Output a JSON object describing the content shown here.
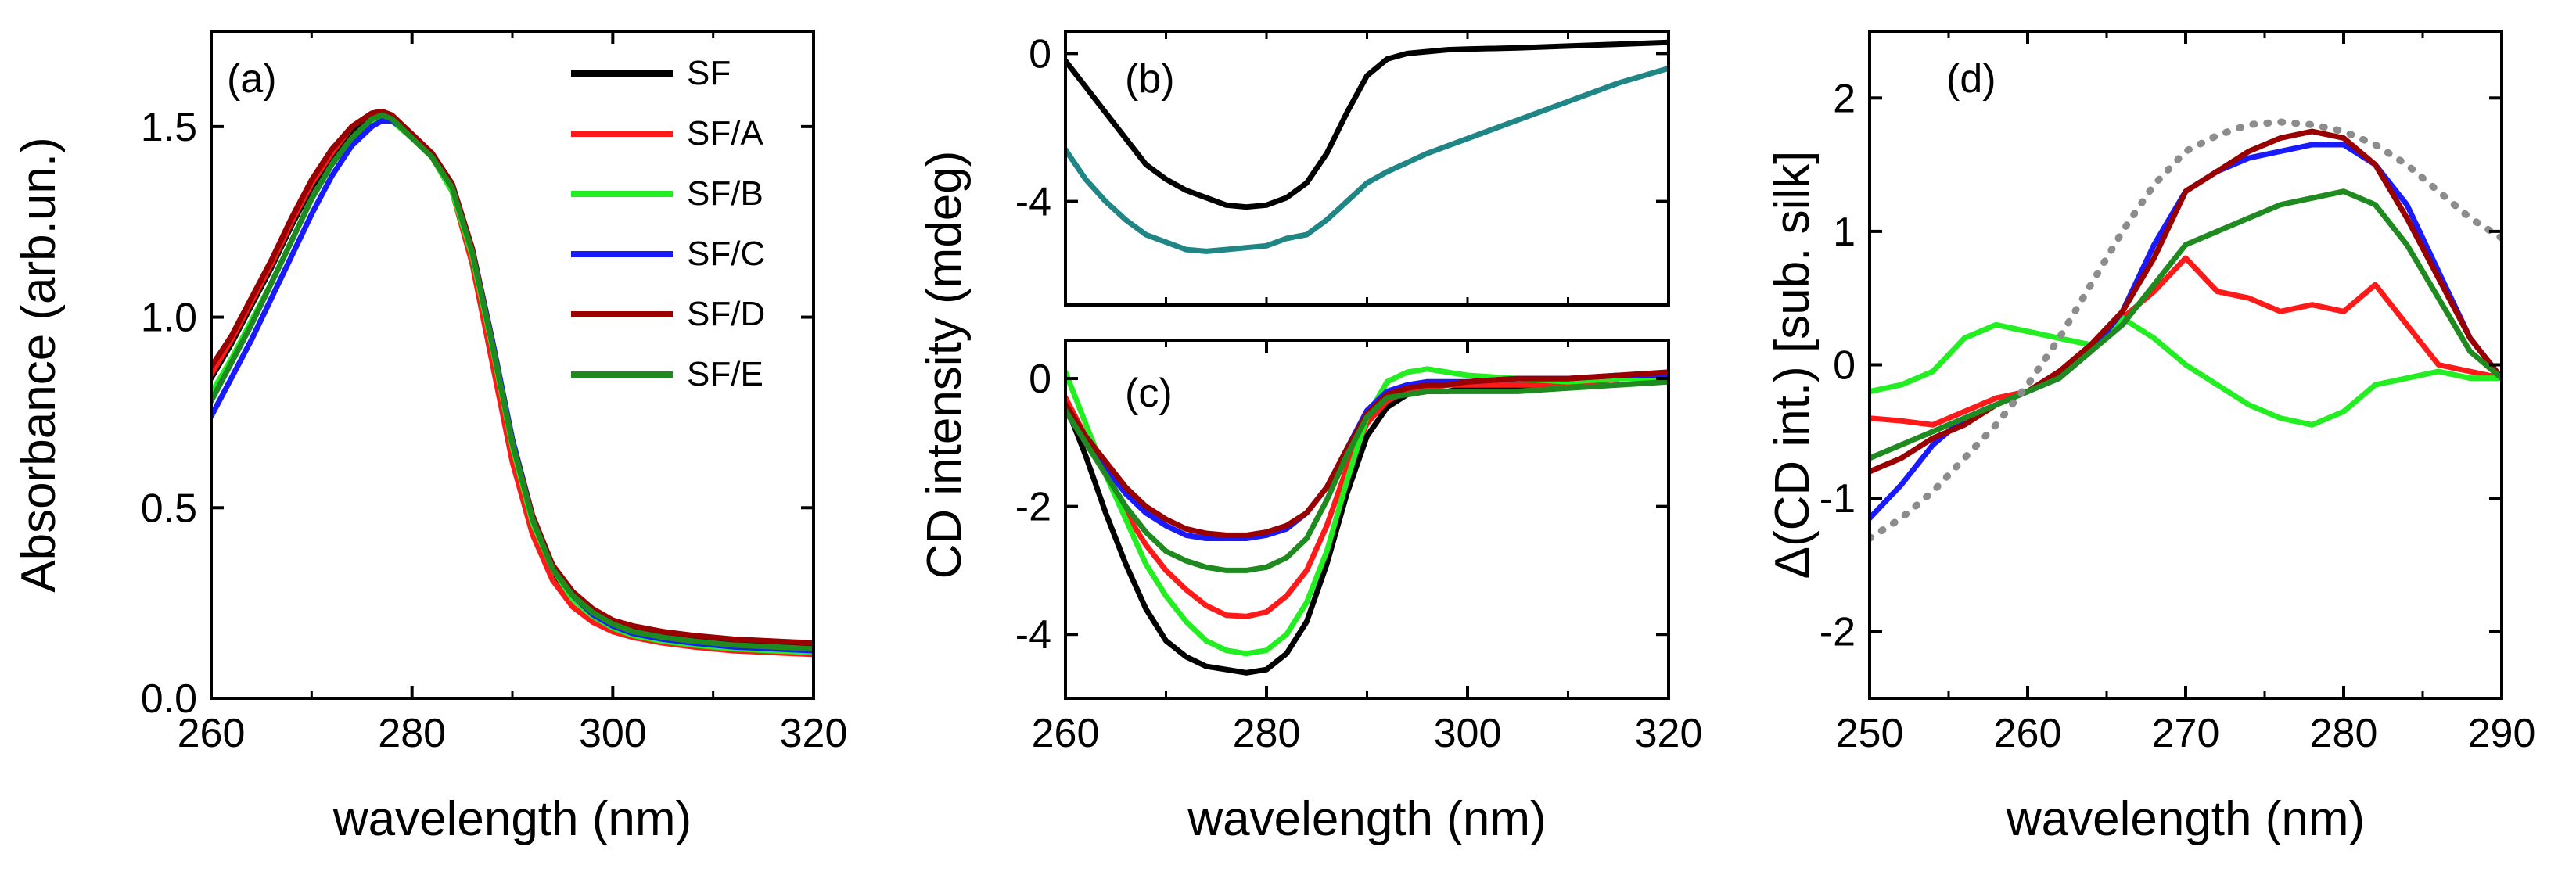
{
  "figure": {
    "shared_xlabel": "wavelength (nm)",
    "cd_ylabel": "CD intensity (mdeg)"
  },
  "colors": {
    "SF": "#000000",
    "SF/A": "#ff1a1a",
    "SF/B": "#22ee22",
    "SF/C": "#1a1aff",
    "SF/D": "#990000",
    "SF/E": "#1f8a1f",
    "teal": "#1f8585",
    "dotted": "#8c8c8c"
  },
  "chart_data": [
    {
      "id": "a",
      "type": "line",
      "panel_label": "(a)",
      "xlabel": "wavelength (nm)",
      "ylabel": "Absorbance (arb.un.)",
      "xlim": [
        260,
        320
      ],
      "ylim": [
        0,
        1.75
      ],
      "xticks": [
        260,
        280,
        300,
        320
      ],
      "xtick_labels": [
        "260",
        "280",
        "300",
        "320"
      ],
      "yticks": [
        0,
        0.5,
        1.0,
        1.5
      ],
      "ytick_labels": [
        "0.0",
        "0.5",
        "1.0",
        "1.5"
      ],
      "legend_position": "top-right",
      "x": [
        260,
        262,
        264,
        266,
        268,
        270,
        272,
        274,
        276,
        277,
        278,
        280,
        282,
        284,
        286,
        288,
        290,
        292,
        294,
        296,
        298,
        300,
        302,
        305,
        308,
        312,
        316,
        320
      ],
      "series": [
        {
          "name": "SF",
          "color_key": "SF",
          "values": [
            0.84,
            0.93,
            1.03,
            1.13,
            1.24,
            1.34,
            1.42,
            1.49,
            1.53,
            1.535,
            1.52,
            1.47,
            1.42,
            1.33,
            1.15,
            0.9,
            0.64,
            0.45,
            0.33,
            0.26,
            0.22,
            0.195,
            0.18,
            0.165,
            0.155,
            0.145,
            0.14,
            0.135
          ]
        },
        {
          "name": "SF/A",
          "color_key": "SF/A",
          "values": [
            0.85,
            0.94,
            1.04,
            1.14,
            1.25,
            1.35,
            1.43,
            1.5,
            1.535,
            1.54,
            1.525,
            1.475,
            1.42,
            1.33,
            1.14,
            0.88,
            0.62,
            0.43,
            0.31,
            0.24,
            0.2,
            0.175,
            0.16,
            0.145,
            0.135,
            0.125,
            0.12,
            0.115
          ]
        },
        {
          "name": "SF/B",
          "color_key": "SF/B",
          "values": [
            0.8,
            0.89,
            0.99,
            1.09,
            1.2,
            1.31,
            1.4,
            1.47,
            1.515,
            1.525,
            1.515,
            1.47,
            1.42,
            1.33,
            1.16,
            0.92,
            0.66,
            0.46,
            0.34,
            0.26,
            0.215,
            0.185,
            0.165,
            0.15,
            0.14,
            0.13,
            0.125,
            0.12
          ]
        },
        {
          "name": "SF/C",
          "color_key": "SF/C",
          "values": [
            0.74,
            0.84,
            0.94,
            1.05,
            1.16,
            1.27,
            1.37,
            1.45,
            1.5,
            1.515,
            1.515,
            1.48,
            1.43,
            1.35,
            1.18,
            0.94,
            0.68,
            0.48,
            0.35,
            0.27,
            0.22,
            0.19,
            0.17,
            0.155,
            0.145,
            0.135,
            0.13,
            0.125
          ]
        },
        {
          "name": "SF/D",
          "color_key": "SF/D",
          "values": [
            0.87,
            0.95,
            1.05,
            1.15,
            1.26,
            1.36,
            1.44,
            1.5,
            1.535,
            1.54,
            1.53,
            1.48,
            1.43,
            1.35,
            1.18,
            0.93,
            0.67,
            0.48,
            0.35,
            0.28,
            0.235,
            0.205,
            0.19,
            0.175,
            0.165,
            0.155,
            0.15,
            0.145
          ]
        },
        {
          "name": "SF/E",
          "color_key": "SF/E",
          "values": [
            0.78,
            0.88,
            0.98,
            1.09,
            1.2,
            1.31,
            1.4,
            1.47,
            1.52,
            1.53,
            1.52,
            1.47,
            1.42,
            1.34,
            1.17,
            0.93,
            0.67,
            0.47,
            0.34,
            0.27,
            0.225,
            0.195,
            0.175,
            0.16,
            0.15,
            0.14,
            0.135,
            0.13
          ]
        }
      ]
    },
    {
      "id": "b",
      "type": "line",
      "panel_label": "(b)",
      "xlim": [
        260,
        320
      ],
      "ylim": [
        -6.8,
        0.6
      ],
      "yticks": [
        0,
        -4
      ],
      "ytick_labels": [
        "0",
        "-4"
      ],
      "x": [
        260,
        262,
        264,
        266,
        268,
        270,
        272,
        274,
        276,
        278,
        280,
        282,
        284,
        286,
        288,
        290,
        292,
        294,
        296,
        298,
        300,
        305,
        310,
        315,
        320
      ],
      "series": [
        {
          "name": "black",
          "color_key": "SF",
          "values": [
            -0.2,
            -0.9,
            -1.6,
            -2.3,
            -3.0,
            -3.4,
            -3.7,
            -3.9,
            -4.1,
            -4.15,
            -4.1,
            -3.9,
            -3.5,
            -2.7,
            -1.6,
            -0.6,
            -0.15,
            0.0,
            0.05,
            0.1,
            0.12,
            0.15,
            0.2,
            0.25,
            0.3
          ]
        },
        {
          "name": "teal",
          "color_key": "teal",
          "values": [
            -2.6,
            -3.4,
            -4.0,
            -4.5,
            -4.9,
            -5.1,
            -5.3,
            -5.35,
            -5.3,
            -5.25,
            -5.2,
            -5.0,
            -4.9,
            -4.5,
            -4.0,
            -3.5,
            -3.2,
            -2.95,
            -2.7,
            -2.5,
            -2.3,
            -1.8,
            -1.3,
            -0.8,
            -0.4
          ]
        }
      ]
    },
    {
      "id": "c",
      "type": "line",
      "panel_label": "(c)",
      "xlabel": "wavelength (nm)",
      "xlim": [
        260,
        320
      ],
      "ylim": [
        -5.0,
        0.6
      ],
      "xticks": [
        260,
        280,
        300,
        320
      ],
      "xtick_labels": [
        "260",
        "280",
        "300",
        "320"
      ],
      "yticks": [
        0,
        -2,
        -4
      ],
      "ytick_labels": [
        "0",
        "-2",
        "-4"
      ],
      "x": [
        260,
        262,
        264,
        266,
        268,
        270,
        272,
        274,
        276,
        278,
        280,
        282,
        284,
        286,
        288,
        290,
        292,
        294,
        296,
        298,
        300,
        305,
        310,
        315,
        320
      ],
      "series": [
        {
          "name": "SF",
          "color_key": "SF",
          "values": [
            -0.4,
            -1.2,
            -2.1,
            -2.9,
            -3.6,
            -4.1,
            -4.35,
            -4.5,
            -4.55,
            -4.6,
            -4.55,
            -4.3,
            -3.8,
            -2.9,
            -1.8,
            -0.9,
            -0.45,
            -0.25,
            -0.2,
            -0.2,
            -0.15,
            -0.15,
            -0.1,
            0.0,
            0.05
          ]
        },
        {
          "name": "SF/A",
          "color_key": "SF/A",
          "values": [
            -0.3,
            -0.9,
            -1.5,
            -2.1,
            -2.6,
            -3.0,
            -3.3,
            -3.55,
            -3.7,
            -3.72,
            -3.65,
            -3.4,
            -3.0,
            -2.3,
            -1.4,
            -0.7,
            -0.35,
            -0.2,
            -0.15,
            -0.1,
            -0.1,
            -0.1,
            -0.1,
            0.0,
            0.05
          ]
        },
        {
          "name": "SF/B",
          "color_key": "SF/B",
          "values": [
            0.1,
            -0.7,
            -1.5,
            -2.2,
            -2.9,
            -3.4,
            -3.8,
            -4.1,
            -4.25,
            -4.3,
            -4.25,
            -4.0,
            -3.5,
            -2.7,
            -1.6,
            -0.6,
            -0.05,
            0.1,
            0.15,
            0.1,
            0.05,
            0.0,
            -0.05,
            0.0,
            0.0
          ]
        },
        {
          "name": "SF/C",
          "color_key": "SF/C",
          "values": [
            -0.5,
            -1.0,
            -1.4,
            -1.8,
            -2.1,
            -2.3,
            -2.45,
            -2.5,
            -2.5,
            -2.5,
            -2.45,
            -2.35,
            -2.1,
            -1.7,
            -1.1,
            -0.5,
            -0.2,
            -0.1,
            -0.05,
            -0.05,
            -0.05,
            0.0,
            0.0,
            0.05,
            0.05
          ]
        },
        {
          "name": "SF/D",
          "color_key": "SF/D",
          "values": [
            -0.4,
            -0.9,
            -1.3,
            -1.7,
            -2.0,
            -2.2,
            -2.35,
            -2.42,
            -2.45,
            -2.45,
            -2.4,
            -2.3,
            -2.1,
            -1.7,
            -1.1,
            -0.55,
            -0.25,
            -0.15,
            -0.1,
            -0.1,
            -0.05,
            0.0,
            0.0,
            0.05,
            0.1
          ]
        },
        {
          "name": "SF/E",
          "color_key": "SF/E",
          "values": [
            -0.5,
            -1.0,
            -1.5,
            -2.0,
            -2.4,
            -2.7,
            -2.85,
            -2.95,
            -3.0,
            -3.0,
            -2.95,
            -2.8,
            -2.5,
            -1.9,
            -1.2,
            -0.6,
            -0.3,
            -0.25,
            -0.2,
            -0.2,
            -0.2,
            -0.2,
            -0.15,
            -0.1,
            -0.05
          ]
        }
      ]
    },
    {
      "id": "d",
      "type": "line",
      "panel_label": "(d)",
      "xlabel": "wavelength (nm)",
      "ylabel": "Δ(CD int.) [sub. silk]",
      "xlim": [
        250,
        290
      ],
      "ylim": [
        -2.5,
        2.5
      ],
      "xticks": [
        250,
        260,
        270,
        280,
        290
      ],
      "xtick_labels": [
        "250",
        "260",
        "270",
        "280",
        "290"
      ],
      "yticks": [
        -2,
        -1,
        0,
        1,
        2
      ],
      "ytick_labels": [
        "-2",
        "-1",
        "0",
        "1",
        "2"
      ],
      "x": [
        250,
        252,
        254,
        256,
        258,
        260,
        262,
        264,
        266,
        268,
        270,
        272,
        274,
        276,
        278,
        280,
        282,
        284,
        286,
        288,
        290
      ],
      "series": [
        {
          "name": "SF/A",
          "color_key": "SF/A",
          "values": [
            -0.4,
            -0.42,
            -0.45,
            -0.35,
            -0.25,
            -0.2,
            -0.1,
            0.1,
            0.35,
            0.55,
            0.8,
            0.55,
            0.5,
            0.4,
            0.45,
            0.4,
            0.6,
            0.3,
            0.0,
            -0.05,
            -0.1
          ]
        },
        {
          "name": "SF/B",
          "color_key": "SF/B",
          "values": [
            -0.2,
            -0.15,
            -0.05,
            0.2,
            0.3,
            0.25,
            0.2,
            0.15,
            0.35,
            0.2,
            0.0,
            -0.15,
            -0.3,
            -0.4,
            -0.45,
            -0.35,
            -0.15,
            -0.1,
            -0.05,
            -0.1,
            -0.1
          ]
        },
        {
          "name": "SF/C",
          "color_key": "SF/C",
          "values": [
            -1.15,
            -0.9,
            -0.6,
            -0.4,
            -0.3,
            -0.2,
            -0.1,
            0.1,
            0.4,
            0.9,
            1.3,
            1.45,
            1.55,
            1.6,
            1.65,
            1.65,
            1.5,
            1.2,
            0.7,
            0.2,
            -0.1
          ]
        },
        {
          "name": "SF/D",
          "color_key": "SF/D",
          "values": [
            -0.8,
            -0.7,
            -0.55,
            -0.45,
            -0.3,
            -0.2,
            -0.05,
            0.15,
            0.4,
            0.8,
            1.3,
            1.45,
            1.6,
            1.7,
            1.75,
            1.7,
            1.5,
            1.1,
            0.65,
            0.2,
            -0.1
          ]
        },
        {
          "name": "SF/E",
          "color_key": "SF/E",
          "values": [
            -0.7,
            -0.6,
            -0.5,
            -0.4,
            -0.3,
            -0.2,
            -0.1,
            0.1,
            0.3,
            0.6,
            0.9,
            1.0,
            1.1,
            1.2,
            1.25,
            1.3,
            1.2,
            0.9,
            0.5,
            0.1,
            -0.1
          ]
        },
        {
          "name": "dotted",
          "color_key": "dotted",
          "dashed": true,
          "values": [
            -1.3,
            -1.15,
            -0.95,
            -0.7,
            -0.45,
            -0.15,
            0.2,
            0.6,
            1.0,
            1.35,
            1.6,
            1.72,
            1.8,
            1.82,
            1.8,
            1.75,
            1.65,
            1.5,
            1.3,
            1.1,
            0.95
          ]
        }
      ]
    }
  ]
}
